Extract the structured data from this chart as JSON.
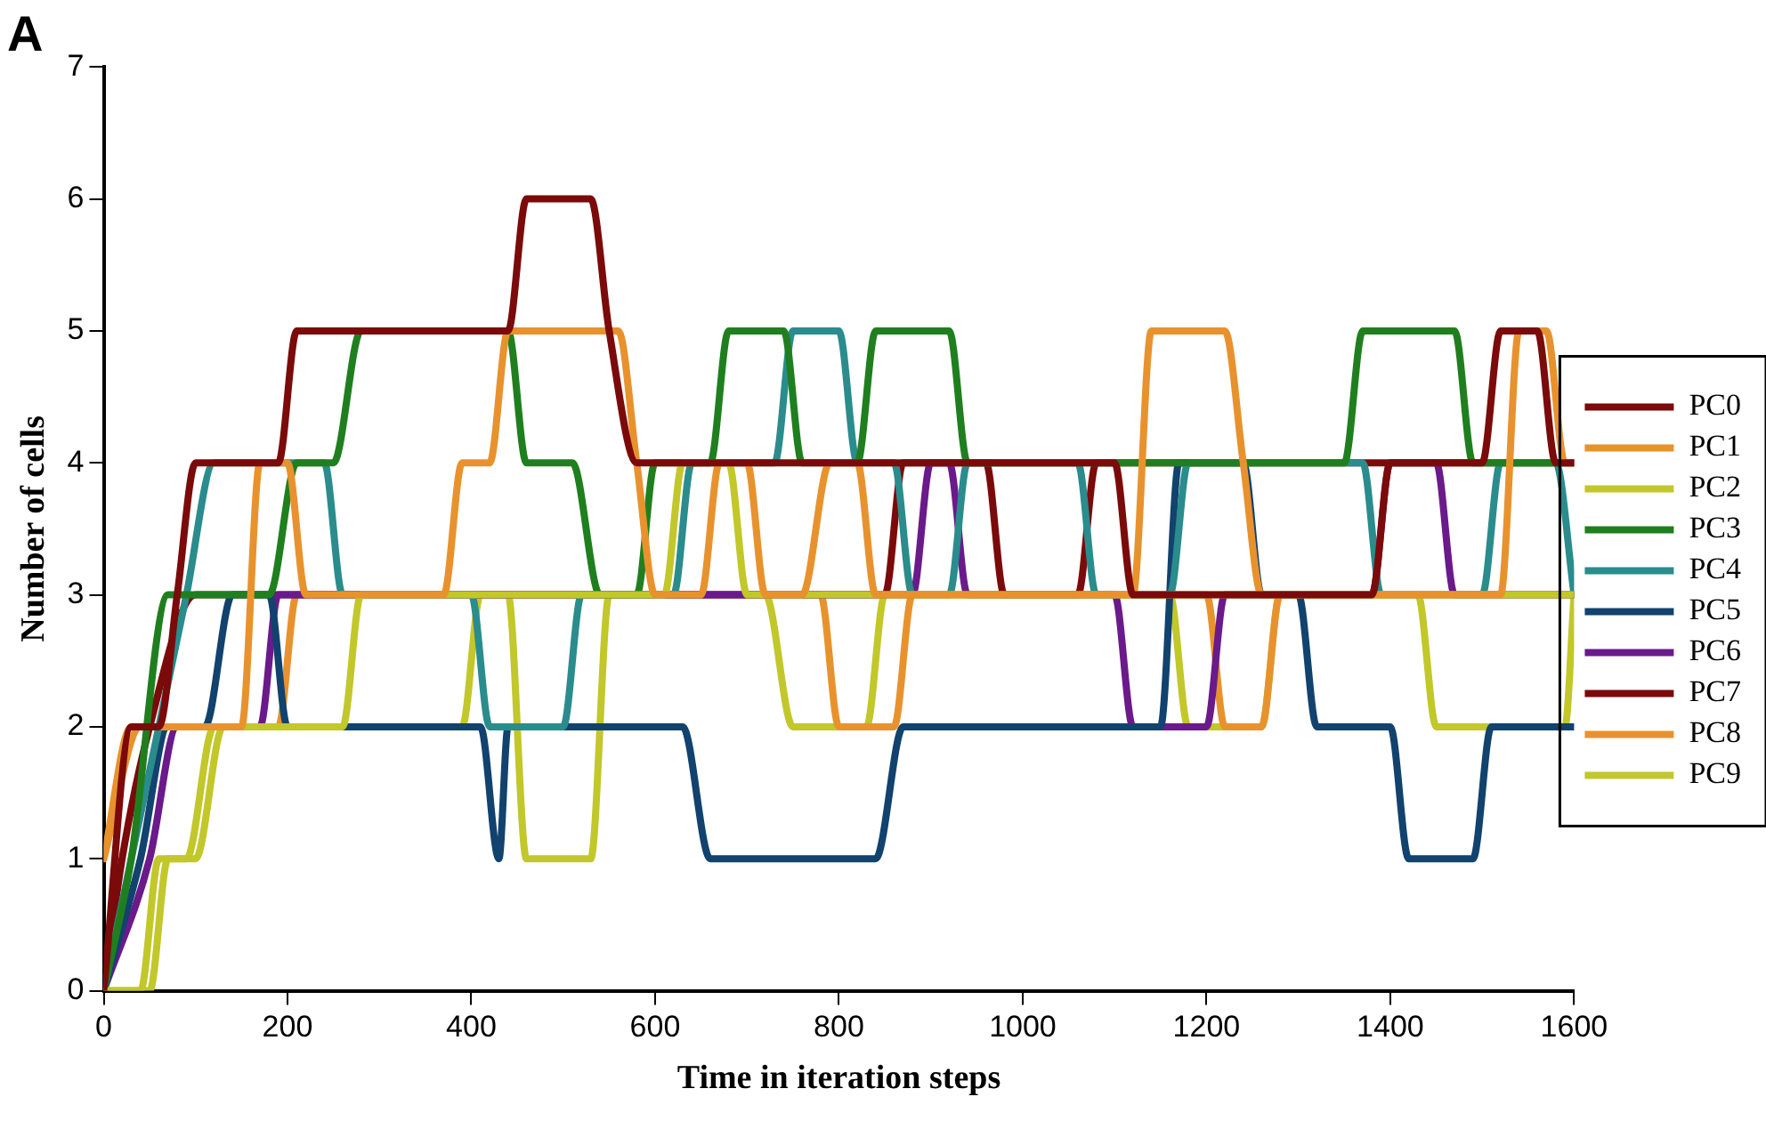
{
  "chart_data": {
    "type": "line",
    "title": "A",
    "xlabel": "Time in iteration steps",
    "ylabel": "Number of cells",
    "xlim": [
      0,
      1600
    ],
    "xticks": [
      0,
      200,
      400,
      600,
      800,
      1000,
      1200,
      1400,
      1600
    ],
    "ylim": [
      0,
      7
    ],
    "yticks": [
      0,
      1,
      2,
      3,
      4,
      5,
      6,
      7
    ],
    "grid": false,
    "legend": "right",
    "marker": "none",
    "line_style": "solid",
    "series": [
      {
        "name": "PC0",
        "color": "#7b0a0a",
        "x": [
          0,
          30,
          60,
          80,
          100,
          190,
          210,
          440,
          460,
          530,
          550,
          580,
          1100,
          1120,
          1380,
          1400,
          1500,
          1520,
          1560,
          1580,
          1600
        ],
        "values": [
          0,
          2,
          2,
          3,
          4,
          4,
          5,
          5,
          6,
          6,
          5,
          4,
          4,
          3,
          3,
          4,
          4,
          5,
          5,
          4,
          4
        ]
      },
      {
        "name": "PC1",
        "color": "#e8922e",
        "x": [
          0,
          30,
          150,
          170,
          200,
          220,
          370,
          390,
          420,
          440,
          560,
          580,
          600,
          650,
          670,
          700,
          720,
          760,
          790,
          820,
          840,
          1120,
          1140,
          1220,
          1240,
          1260,
          1520,
          1540,
          1570,
          1590,
          1600
        ],
        "values": [
          1,
          2,
          2,
          4,
          4,
          3,
          3,
          4,
          4,
          5,
          5,
          4,
          3,
          3,
          4,
          4,
          3,
          3,
          4,
          4,
          3,
          3,
          5,
          5,
          4,
          3,
          3,
          5,
          5,
          4,
          4
        ]
      },
      {
        "name": "PC2",
        "color": "#c2c72a",
        "x": [
          0,
          40,
          60,
          90,
          120,
          260,
          280,
          610,
          630,
          680,
          700,
          1600
        ],
        "values": [
          0,
          0,
          1,
          1,
          2,
          2,
          3,
          3,
          4,
          4,
          3,
          3
        ]
      },
      {
        "name": "PC3",
        "color": "#1f7f1f",
        "x": [
          0,
          30,
          70,
          180,
          210,
          250,
          280,
          440,
          460,
          510,
          540,
          580,
          600,
          660,
          680,
          740,
          760,
          820,
          840,
          920,
          940,
          1350,
          1370,
          1470,
          1490,
          1600
        ],
        "values": [
          0,
          1,
          3,
          3,
          4,
          4,
          5,
          5,
          4,
          4,
          3,
          3,
          4,
          4,
          5,
          5,
          4,
          4,
          5,
          5,
          4,
          4,
          5,
          5,
          4,
          4
        ]
      },
      {
        "name": "PC4",
        "color": "#2a8c8c",
        "x": [
          0,
          30,
          60,
          90,
          120,
          240,
          260,
          400,
          420,
          500,
          520,
          620,
          640,
          730,
          750,
          800,
          820,
          860,
          880,
          920,
          940,
          1060,
          1080,
          1160,
          1180,
          1370,
          1390,
          1500,
          1520,
          1580,
          1600
        ],
        "values": [
          0,
          1,
          2,
          3,
          4,
          4,
          3,
          3,
          2,
          2,
          3,
          3,
          4,
          4,
          5,
          5,
          4,
          4,
          3,
          3,
          4,
          4,
          3,
          3,
          4,
          4,
          3,
          3,
          4,
          4,
          3
        ]
      },
      {
        "name": "PC5",
        "color": "#12426e",
        "x": [
          0,
          40,
          70,
          110,
          140,
          180,
          200,
          410,
          430,
          440,
          630,
          660,
          840,
          870,
          1150,
          1170,
          1240,
          1260,
          1300,
          1320,
          1400,
          1420,
          1490,
          1510,
          1600
        ],
        "values": [
          0,
          1,
          2,
          2,
          3,
          3,
          2,
          2,
          1,
          2,
          2,
          1,
          1,
          2,
          2,
          4,
          4,
          3,
          3,
          2,
          2,
          1,
          1,
          2,
          2
        ]
      },
      {
        "name": "PC6",
        "color": "#6a1a8a",
        "x": [
          0,
          50,
          80,
          170,
          190,
          880,
          900,
          920,
          940,
          1100,
          1120,
          1200,
          1220,
          1380,
          1400,
          1450,
          1470,
          1600
        ],
        "values": [
          0,
          1,
          2,
          2,
          3,
          3,
          4,
          4,
          3,
          3,
          2,
          2,
          3,
          3,
          4,
          4,
          3,
          3
        ]
      },
      {
        "name": "PC7",
        "color": "#7b0a0a",
        "x": [
          0,
          20,
          50,
          100,
          850,
          870,
          960,
          980,
          1060,
          1080,
          1600
        ],
        "values": [
          0,
          1,
          2,
          3,
          3,
          4,
          4,
          3,
          3,
          4,
          4
        ]
      },
      {
        "name": "PC8",
        "color": "#e8922e",
        "x": [
          0,
          40,
          190,
          210,
          780,
          800,
          860,
          880,
          1200,
          1220,
          1260,
          1280,
          1600
        ],
        "values": [
          1,
          2,
          2,
          3,
          3,
          2,
          2,
          3,
          3,
          2,
          2,
          3,
          3
        ]
      },
      {
        "name": "PC9",
        "color": "#c2c72a",
        "x": [
          0,
          50,
          70,
          100,
          130,
          390,
          410,
          440,
          460,
          530,
          550,
          720,
          750,
          830,
          850,
          1160,
          1180,
          1260,
          1280,
          1430,
          1450,
          1590,
          1600
        ],
        "values": [
          0,
          0,
          1,
          1,
          2,
          2,
          3,
          3,
          1,
          1,
          3,
          3,
          2,
          2,
          3,
          3,
          2,
          2,
          3,
          3,
          2,
          2,
          3
        ]
      }
    ]
  }
}
